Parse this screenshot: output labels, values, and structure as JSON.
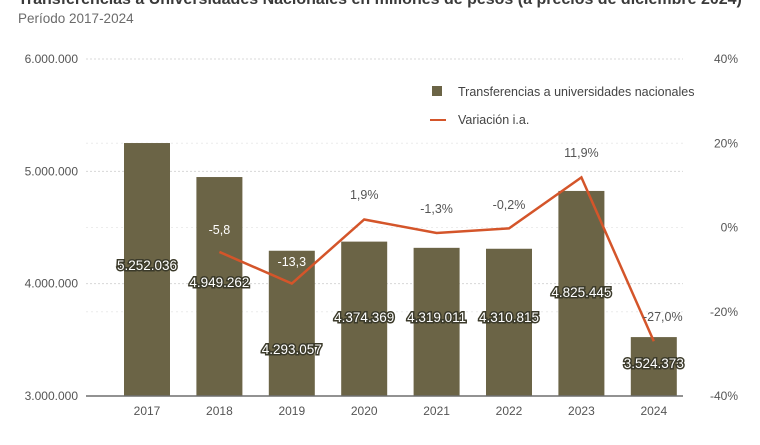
{
  "header": {
    "title": "Transferencias a Universidades Nacionales en millones de pesos (a precios de diciembre 2024)",
    "subtitle": "Período 2017-2024"
  },
  "chart_data": {
    "type": "bar",
    "title": "Transferencias a Universidades Nacionales en millones de pesos (a precios de diciembre 2024)",
    "subtitle": "Período 2017-2024",
    "categories": [
      "2017",
      "2018",
      "2019",
      "2020",
      "2021",
      "2022",
      "2023",
      "2024"
    ],
    "series": [
      {
        "name": "Transferencias a universidades nacionales",
        "type": "bar",
        "axis": "left",
        "color": "#6b6446",
        "values": [
          5252036,
          4949262,
          4293057,
          4374369,
          4319011,
          4310815,
          4825445,
          3524373
        ],
        "labels": [
          "5.252.036",
          "4.949.262",
          "4.293.057",
          "4.374.369",
          "4.319.011",
          "4.310.815",
          "4.825.445",
          "3.524.373"
        ]
      },
      {
        "name": "Variación i.a.",
        "type": "line",
        "axis": "right",
        "color": "#d4552a",
        "values": [
          null,
          -5.8,
          -13.3,
          1.9,
          -1.3,
          -0.2,
          11.9,
          -27.0
        ],
        "labels": [
          "",
          "-5,8",
          "-13,3",
          "1,9%",
          "-1,3%",
          "-0,2%",
          "11,9%",
          "-27,0%"
        ]
      }
    ],
    "y_left": {
      "range": [
        3000000,
        6000000
      ],
      "ticks": [
        3000000,
        4000000,
        5000000,
        6000000
      ],
      "tick_labels": [
        "3.000.000",
        "4.000.000",
        "5.000.000",
        "6.000.000"
      ]
    },
    "y_right": {
      "range": [
        -40,
        40
      ],
      "ticks": [
        -40,
        -20,
        0,
        20,
        40
      ],
      "tick_labels": [
        "-40%",
        "-20%",
        "0%",
        "20%",
        "40%"
      ]
    },
    "xlabel": "",
    "ylabel": "",
    "grid": true,
    "legend_position": "top-right",
    "legend": [
      "Transferencias a universidades nacionales",
      "Variación i.a."
    ]
  }
}
